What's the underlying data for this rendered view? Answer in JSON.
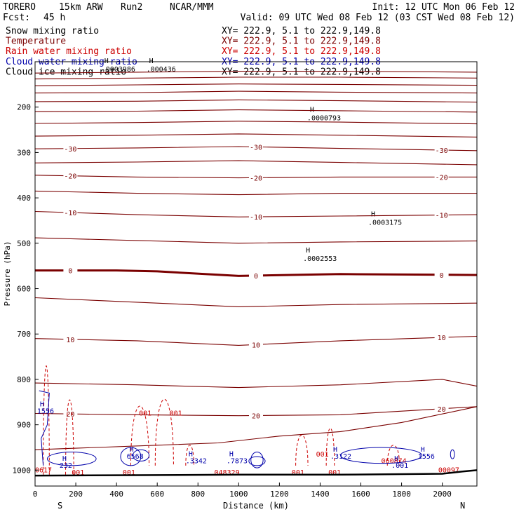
{
  "header": {
    "model": "TORERO",
    "resolution": "15km ARW",
    "run": "Run2",
    "org": "NCAR/MMM",
    "init": "Init: 12 UTC Mon 06 Feb 12",
    "fcst_label": "Fcst:",
    "fcst_value": "45 h",
    "valid": "Valid: 09 UTC Wed 08 Feb 12 (03 CST Wed 08 Feb 12)"
  },
  "legend": [
    {
      "name": "Snow mixing ratio",
      "xy": "XY= 222.9,  5.1 to 222.9,149.8",
      "color": "#000000"
    },
    {
      "name": "Temperature",
      "xy": "XY= 222.9,  5.1 to 222.9,149.8",
      "color": "#7a0000"
    },
    {
      "name": "Rain water mixing ratio",
      "xy": "XY= 222.9,  5.1 to 222.9,149.8",
      "color": "#cc0000"
    },
    {
      "name": "Cloud water mixing ratio",
      "xy": "XY= 222.9,  5.1 to 222.9,149.8",
      "color": "#0000aa"
    },
    {
      "name": "Cloud ice mixing ratio",
      "xy": "XY= 222.9,  5.1 to 222.9,149.8",
      "color": "#000000"
    }
  ],
  "chart_data": {
    "type": "line",
    "xlabel": "Distance (km)",
    "ylabel": "Pressure (hPa)",
    "xlim": [
      0,
      2170
    ],
    "ylim": [
      1035,
      100
    ],
    "x_ticks": [
      0,
      200,
      400,
      600,
      800,
      1000,
      1200,
      1400,
      1600,
      1800,
      2000
    ],
    "y_ticks": [
      200,
      300,
      400,
      500,
      600,
      700,
      800,
      900,
      1000
    ],
    "endpoint_labels": {
      "left": "S",
      "right": "N"
    },
    "temperature_lines": [
      {
        "label": "",
        "p": [
          [
            0,
            125
          ],
          [
            500,
            123
          ],
          [
            1000,
            121
          ],
          [
            1500,
            121
          ],
          [
            2170,
            123
          ]
        ]
      },
      {
        "label": "",
        "p": [
          [
            0,
            138
          ],
          [
            500,
            136
          ],
          [
            1000,
            134
          ],
          [
            1500,
            134
          ],
          [
            2170,
            136
          ]
        ]
      },
      {
        "label": "",
        "p": [
          [
            0,
            153
          ],
          [
            500,
            151
          ],
          [
            1000,
            149
          ],
          [
            1500,
            150
          ],
          [
            2170,
            152
          ]
        ]
      },
      {
        "label": "",
        "p": [
          [
            0,
            169
          ],
          [
            500,
            168
          ],
          [
            1000,
            165
          ],
          [
            1500,
            167
          ],
          [
            2170,
            169
          ]
        ]
      },
      {
        "label": "",
        "p": [
          [
            0,
            188
          ],
          [
            500,
            187
          ],
          [
            1000,
            184
          ],
          [
            1500,
            186
          ],
          [
            2170,
            189
          ]
        ]
      },
      {
        "label": "",
        "p": [
          [
            0,
            210
          ],
          [
            500,
            209
          ],
          [
            1000,
            206
          ],
          [
            1500,
            208
          ],
          [
            2170,
            211
          ]
        ]
      },
      {
        "label": "",
        "p": [
          [
            0,
            236
          ],
          [
            500,
            234
          ],
          [
            1000,
            231
          ],
          [
            1500,
            233
          ],
          [
            2170,
            237
          ]
        ]
      },
      {
        "label": "",
        "p": [
          [
            0,
            264
          ],
          [
            500,
            262
          ],
          [
            1000,
            259
          ],
          [
            1500,
            262
          ],
          [
            2170,
            266
          ]
        ]
      },
      {
        "label": "-30",
        "p": [
          [
            0,
            292
          ],
          [
            500,
            290
          ],
          [
            1000,
            287
          ],
          [
            1500,
            291
          ],
          [
            2170,
            296
          ]
        ]
      },
      {
        "label": "",
        "p": [
          [
            0,
            323
          ],
          [
            500,
            321
          ],
          [
            1000,
            318
          ],
          [
            1500,
            322
          ],
          [
            2170,
            327
          ]
        ]
      },
      {
        "label": "-20",
        "p": [
          [
            0,
            350
          ],
          [
            500,
            354
          ],
          [
            1000,
            356
          ],
          [
            1500,
            354
          ],
          [
            2170,
            354
          ]
        ]
      },
      {
        "label": "",
        "p": [
          [
            0,
            385
          ],
          [
            500,
            390
          ],
          [
            1000,
            393
          ],
          [
            1500,
            390
          ],
          [
            2170,
            390
          ]
        ]
      },
      {
        "label": "-10",
        "p": [
          [
            0,
            430
          ],
          [
            500,
            437
          ],
          [
            1000,
            442
          ],
          [
            1500,
            440
          ],
          [
            2170,
            437
          ]
        ]
      },
      {
        "label": "",
        "p": [
          [
            0,
            488
          ],
          [
            500,
            494
          ],
          [
            1000,
            500
          ],
          [
            1500,
            497
          ],
          [
            2170,
            495
          ]
        ]
      },
      {
        "label": "0",
        "p": [
          [
            0,
            560
          ],
          [
            400,
            560
          ],
          [
            600,
            562
          ],
          [
            1000,
            572
          ],
          [
            1500,
            568
          ],
          [
            2170,
            570
          ]
        ]
      },
      {
        "label": "",
        "p": [
          [
            0,
            620
          ],
          [
            500,
            630
          ],
          [
            1000,
            640
          ],
          [
            1500,
            635
          ],
          [
            2170,
            632
          ]
        ]
      },
      {
        "label": "10",
        "p": [
          [
            0,
            710
          ],
          [
            500,
            715
          ],
          [
            1000,
            725
          ],
          [
            1500,
            715
          ],
          [
            2170,
            705
          ]
        ]
      },
      {
        "label": "",
        "p": [
          [
            0,
            808
          ],
          [
            500,
            812
          ],
          [
            1000,
            818
          ],
          [
            1500,
            812
          ],
          [
            2000,
            800
          ],
          [
            2170,
            815
          ]
        ]
      },
      {
        "label": "20",
        "p": [
          [
            0,
            875
          ],
          [
            500,
            878
          ],
          [
            1000,
            880
          ],
          [
            1500,
            878
          ],
          [
            2170,
            860
          ]
        ]
      },
      {
        "label": "",
        "p": [
          [
            0,
            955
          ],
          [
            300,
            950
          ],
          [
            600,
            945
          ],
          [
            900,
            940
          ],
          [
            1200,
            925
          ],
          [
            1500,
            915
          ],
          [
            1800,
            895
          ],
          [
            2170,
            860
          ]
        ]
      }
    ],
    "rain_max_labels": [
      "001",
      "001",
      "001",
      "001",
      "001",
      "0617",
      "001",
      "001",
      "060874",
      "00097",
      "048329"
    ],
    "cloud_water_max_labels": [
      "1556",
      "232",
      "6568",
      ".3342",
      ".7873",
      ".3122",
      ".001",
      "1556"
    ],
    "cloud_ice_max_labels": [
      ".0003986",
      ".000436",
      ".0000793",
      ".0003175",
      ".0002553"
    ]
  }
}
